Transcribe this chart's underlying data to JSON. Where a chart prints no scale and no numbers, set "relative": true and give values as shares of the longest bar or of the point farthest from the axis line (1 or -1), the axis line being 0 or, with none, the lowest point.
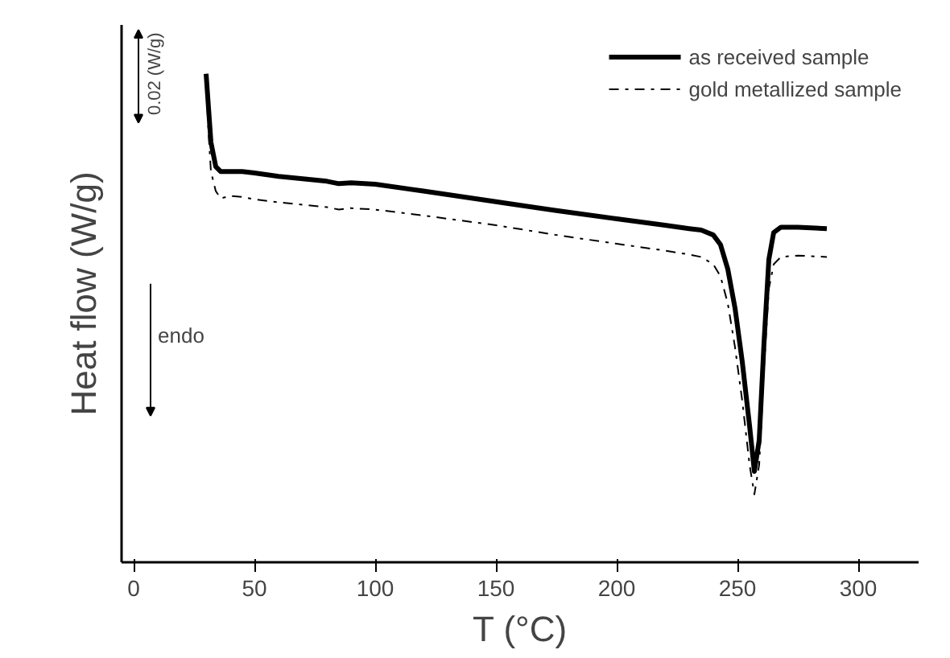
{
  "chart_data": {
    "type": "line",
    "xlabel": "T (°C)",
    "ylabel": "Heat flow (W/g)",
    "relative": true,
    "xlim": [
      -5,
      325
    ],
    "xticks": [
      0,
      50,
      100,
      150,
      200,
      250,
      300
    ],
    "tick_labels": "x",
    "grid": false,
    "legend": "top right",
    "marker": "none",
    "series": [
      {
        "name": "as received sample",
        "color": "#000000",
        "line_style": "solid",
        "x": [
          30,
          31,
          32,
          34,
          36,
          40,
          45,
          50,
          60,
          70,
          80,
          85,
          90,
          100,
          120,
          150,
          175,
          200,
          220,
          230,
          235,
          240,
          243,
          246,
          249,
          252,
          255,
          257,
          259,
          261,
          263,
          265,
          268,
          275,
          287
        ],
        "values": [
          1.0,
          0.93,
          0.86,
          0.81,
          0.8,
          0.8,
          0.8,
          0.797,
          0.79,
          0.785,
          0.78,
          0.775,
          0.777,
          0.774,
          0.76,
          0.738,
          0.72,
          0.703,
          0.69,
          0.683,
          0.68,
          0.67,
          0.65,
          0.6,
          0.52,
          0.41,
          0.28,
          0.186,
          0.25,
          0.45,
          0.62,
          0.675,
          0.686,
          0.686,
          0.683
        ]
      },
      {
        "name": "gold metallized sample",
        "color": "#000000",
        "line_style": "dashdot",
        "x": [
          30,
          31,
          32,
          34,
          36,
          40,
          45,
          50,
          60,
          70,
          80,
          85,
          90,
          100,
          120,
          150,
          175,
          200,
          220,
          230,
          235,
          240,
          243,
          246,
          249,
          252,
          255,
          257,
          259,
          261,
          263,
          265,
          268,
          275,
          287
        ],
        "values": [
          0.98,
          0.88,
          0.8,
          0.76,
          0.745,
          0.75,
          0.748,
          0.743,
          0.737,
          0.732,
          0.727,
          0.722,
          0.725,
          0.722,
          0.71,
          0.69,
          0.67,
          0.652,
          0.638,
          0.63,
          0.625,
          0.61,
          0.585,
          0.53,
          0.44,
          0.33,
          0.2,
          0.139,
          0.2,
          0.4,
          0.56,
          0.61,
          0.625,
          0.628,
          0.625
        ]
      }
    ],
    "annotations": [
      "0.02 (W/g)",
      "endo"
    ]
  }
}
